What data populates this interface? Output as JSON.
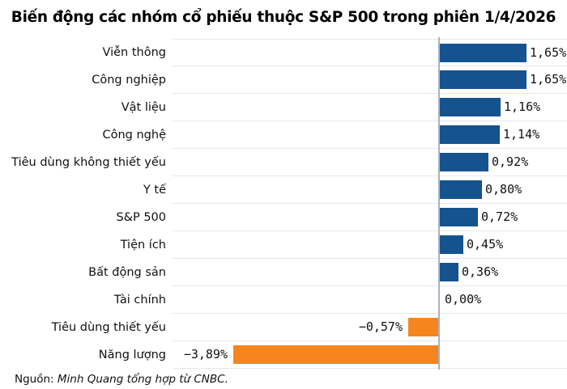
{
  "chart_data": {
    "type": "bar",
    "orientation": "horizontal",
    "title": "Biến động các nhóm cổ phiếu thuộc S&P 500 trong phiên 1/4/2026",
    "categories": [
      "Viễn thông",
      "Công nghiệp",
      "Vật liệu",
      "Công nghệ",
      "Tiêu dùng không thiết yếu",
      "Y tế",
      "S&P 500",
      "Tiện ích",
      "Bất động sản",
      "Tài chính",
      "Tiêu dùng thiết yếu",
      "Năng lượng"
    ],
    "values": [
      1.65,
      1.65,
      1.16,
      1.14,
      0.92,
      0.8,
      0.72,
      0.45,
      0.36,
      0.0,
      -0.57,
      -3.89
    ],
    "value_labels": [
      "1,65%",
      "1,65%",
      "1,16%",
      "1,14%",
      "0,92%",
      "0,80%",
      "0,72%",
      "0,45%",
      "0,36%",
      "0,00%",
      "−0,57%",
      "−3,89%"
    ],
    "xlabel": "",
    "ylabel": "",
    "xlim": [
      -5.06,
      2.43
    ],
    "grid": "row-separators",
    "legend": "none"
  },
  "colors": {
    "positive_bar": "#15538f",
    "negative_bar": "#f5861e",
    "gridline": "#e7e7e7",
    "zero_axis": "#a9b3bf"
  },
  "source": {
    "prefix": "Nguồn:",
    "text": "Minh Quang tổng hợp từ CNBC."
  }
}
